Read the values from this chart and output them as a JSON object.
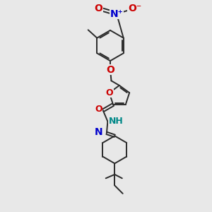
{
  "bg_color": "#e8e8e8",
  "bond_color": "#2a2a2a",
  "bond_lw": 1.4,
  "O_color": "#cc0000",
  "N_color": "#0000cc",
  "NH_color": "#008888",
  "fig_w": 3.0,
  "fig_h": 3.0,
  "dpi": 100,
  "xlim": [
    0,
    10
  ],
  "ylim": [
    0,
    10
  ]
}
